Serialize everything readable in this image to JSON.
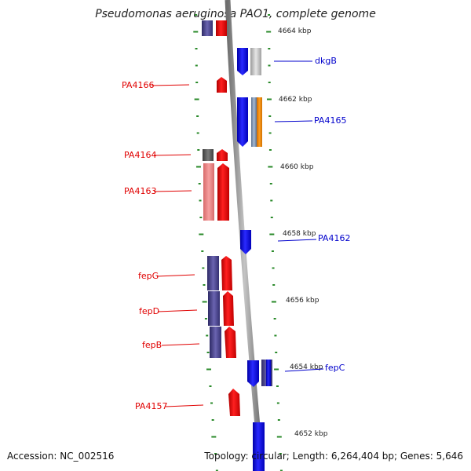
{
  "title": "Pseudomonas aeruginosa PAO1, complete genome",
  "footer": {
    "accession": "Accession: NC_002516",
    "topology": "Topology: circular; Length: 6,264,404 bp; Genes: 5,646"
  },
  "scale_labels": [
    "4664 kbp",
    "4662 kbp",
    "4660 kbp",
    "4658 kbp",
    "4656 kbp",
    "4654 kbp",
    "4652 kbp"
  ],
  "genes_left": [
    "PA4166",
    "PA4164",
    "PA4163",
    "fepG",
    "fepD",
    "fepB",
    "PA4157"
  ],
  "genes_right": [
    "dkgB",
    "PA4165",
    "PA4162",
    "fepC"
  ],
  "colors": {
    "plus_strand": "#ff0000",
    "plus_pale": "#f08080",
    "minus_strand": "#0000ff",
    "operon_purple": "#4b4590",
    "grey": "#c0c0c0",
    "dark_grey": "#5a5a5a",
    "orange": "#ff8c00",
    "scale_dash": "#2a8a2a",
    "backbone": "#8a8a8a"
  }
}
